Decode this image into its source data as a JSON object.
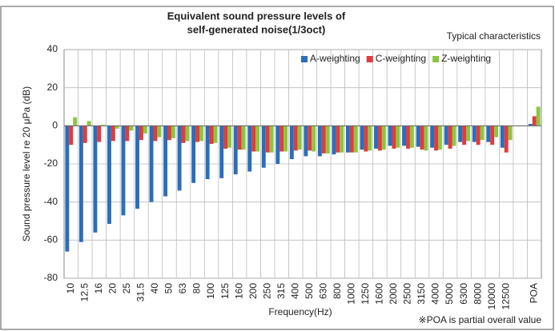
{
  "chart_data": {
    "type": "bar",
    "title": [
      "Equivalent sound pressure levels of",
      "self-generated noise(1/3oct)"
    ],
    "subtitle": "Typical characteristics",
    "annotation": "※POA is partial overall value",
    "x_label": "Frequency(Hz)",
    "y_label": "Sound pressure level re 20 μPa (dB)",
    "categories": [
      "10",
      "12.5",
      "16",
      "20",
      "25",
      "31.5",
      "40",
      "50",
      "63",
      "80",
      "100",
      "125",
      "160",
      "200",
      "250",
      "315",
      "400",
      "500",
      "630",
      "800",
      "1000",
      "1250",
      "1600",
      "2000",
      "2500",
      "3150",
      "4000",
      "5000",
      "6300",
      "8000",
      "10000",
      "12500",
      null,
      "POA"
    ],
    "series": [
      {
        "name": "A-weighting",
        "color": "#2a6ebb",
        "values": [
          -66,
          -61,
          -56,
          -51.5,
          -47,
          -43.5,
          -40,
          -37,
          -34,
          -30,
          -28,
          -27.5,
          -25.5,
          -24,
          -22,
          -20,
          -17.5,
          -16,
          -16,
          -15,
          -14,
          -12.5,
          -12,
          -10.5,
          -10.5,
          -11,
          -11.5,
          -10,
          -8.5,
          -8.5,
          -8.5,
          -11.5,
          null,
          1
        ]
      },
      {
        "name": "C-weighting",
        "color": "#e03c3c",
        "values": [
          -10,
          -9,
          -8.5,
          -8,
          -8,
          -7.5,
          -8,
          -7.5,
          -9,
          -8.5,
          -9.5,
          -12,
          -12.5,
          -13.5,
          -14,
          -13.5,
          -13,
          -13,
          -14.5,
          -14,
          -14,
          -13.5,
          -13,
          -12,
          -12,
          -12.5,
          -13,
          -12,
          -10,
          -10,
          -10,
          -14,
          null,
          5
        ]
      },
      {
        "name": "Z-weighting",
        "color": "#8cc63f",
        "values": [
          4.5,
          2.5,
          0.5,
          -1.5,
          -2.5,
          -4,
          -6,
          -6.5,
          -8,
          -8,
          -9,
          -11.5,
          -12.5,
          -13.5,
          -14,
          -13.5,
          -12.5,
          -13.5,
          -14.5,
          -14,
          -14,
          -13,
          -12.5,
          -11.5,
          -11.5,
          -13,
          -12.5,
          -10.5,
          -8,
          -7.5,
          -6,
          -7.5,
          null,
          10
        ]
      }
    ],
    "ylim": [
      -80,
      40
    ],
    "yticks": [
      -80,
      -60,
      -40,
      -20,
      0,
      20,
      40
    ],
    "grid": true,
    "legend": "upper right"
  }
}
